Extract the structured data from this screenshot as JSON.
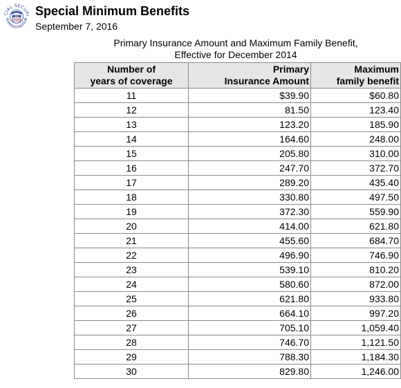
{
  "header": {
    "logo_text_top": "SOCIAL SECURITY",
    "logo_text_bottom": "ADMINISTRATION",
    "logo_badge": "USA",
    "title": "Special Minimum Benefits",
    "date": "September 7, 2016"
  },
  "caption": {
    "line1": "Primary Insurance Amount and Maximum Family Benefit,",
    "line2": "Effective for December 2014"
  },
  "table": {
    "headers": {
      "years_line1": "Number of",
      "years_line2": "years of coverage",
      "pia_line1": "Primary",
      "pia_line2": "Insurance Amount",
      "max_line1": "Maximum",
      "max_line2": "family benefit"
    },
    "rows": [
      {
        "years": "11",
        "pia": "$39.90",
        "max": "$60.80"
      },
      {
        "years": "12",
        "pia": "81.50",
        "max": "123.40"
      },
      {
        "years": "13",
        "pia": "123.20",
        "max": "185.90"
      },
      {
        "years": "14",
        "pia": "164.60",
        "max": "248.00"
      },
      {
        "years": "15",
        "pia": "205.80",
        "max": "310.00"
      },
      {
        "years": "16",
        "pia": "247.70",
        "max": "372.70"
      },
      {
        "years": "17",
        "pia": "289.20",
        "max": "435.40"
      },
      {
        "years": "18",
        "pia": "330.80",
        "max": "497.50"
      },
      {
        "years": "19",
        "pia": "372.30",
        "max": "559.90"
      },
      {
        "years": "20",
        "pia": "414.00",
        "max": "621.80"
      },
      {
        "years": "21",
        "pia": "455.60",
        "max": "684.70"
      },
      {
        "years": "22",
        "pia": "496.90",
        "max": "746.90"
      },
      {
        "years": "23",
        "pia": "539.10",
        "max": "810.20"
      },
      {
        "years": "24",
        "pia": "580.60",
        "max": "872.00"
      },
      {
        "years": "25",
        "pia": "621.80",
        "max": "933.80"
      },
      {
        "years": "26",
        "pia": "664.10",
        "max": "997.20"
      },
      {
        "years": "27",
        "pia": "705.10",
        "max": "1,059.40"
      },
      {
        "years": "28",
        "pia": "746.70",
        "max": "1,121.50"
      },
      {
        "years": "29",
        "pia": "788.30",
        "max": "1,184.30"
      },
      {
        "years": "30",
        "pia": "829.80",
        "max": "1,246.00"
      }
    ]
  },
  "colors": {
    "logo_blue": "#2f4a9c",
    "header_bg": "#e6e6e6",
    "border": "#8a8a8a"
  }
}
